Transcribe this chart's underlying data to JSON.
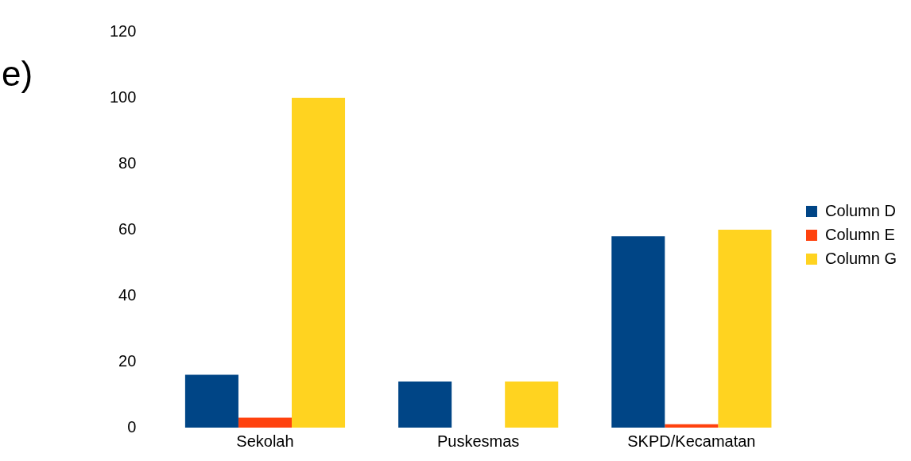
{
  "chart_data": {
    "type": "bar",
    "title": "e)",
    "categories": [
      "Sekolah",
      "Puskesmas",
      "SKPD/Kecamatan"
    ],
    "series": [
      {
        "name": "Column D",
        "color": "#004586",
        "values": [
          16,
          14,
          58
        ]
      },
      {
        "name": "Column E",
        "color": "#ff420e",
        "values": [
          3,
          0,
          1
        ]
      },
      {
        "name": "Column G",
        "color": "#ffd320",
        "values": [
          100,
          14,
          60
        ]
      }
    ],
    "ylim": [
      0,
      120
    ],
    "yticks": [
      0,
      20,
      40,
      60,
      80,
      100,
      120
    ],
    "grid": false,
    "legend": "right"
  }
}
